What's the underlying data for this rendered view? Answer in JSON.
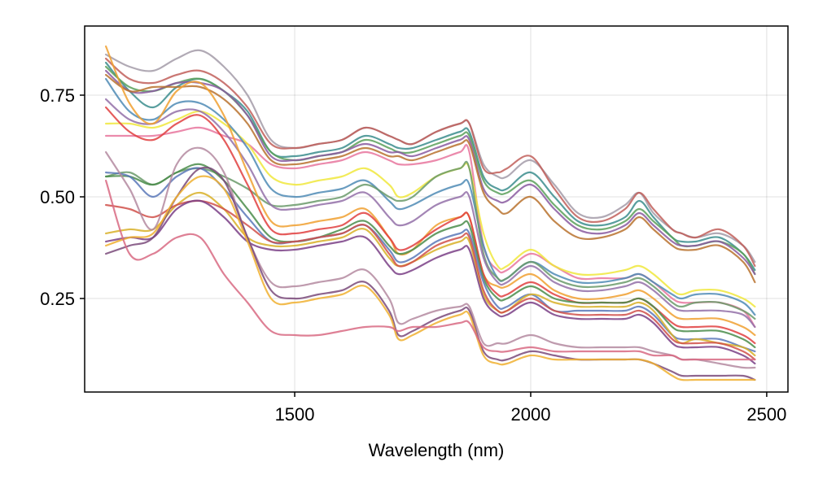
{
  "chart_data": {
    "type": "line",
    "title": "",
    "xlabel": "Wavelength (nm)",
    "ylabel": "",
    "xlim": [
      1055,
      2545
    ],
    "ylim": [
      0.02,
      0.92
    ],
    "xticks": [
      1500,
      2000,
      2500
    ],
    "xtick_labels": [
      "1500",
      "2000",
      "2500"
    ],
    "yticks": [
      0.25,
      0.5,
      0.75
    ],
    "ytick_labels": [
      "0.25",
      "0.50",
      "0.75"
    ],
    "grid": true,
    "legend": "none",
    "x": [
      1100,
      1150,
      1200,
      1250,
      1300,
      1350,
      1400,
      1450,
      1500,
      1550,
      1600,
      1650,
      1700,
      1720,
      1750,
      1800,
      1850,
      1870,
      1900,
      1930,
      1950,
      2000,
      2050,
      2100,
      2150,
      2200,
      2230,
      2260,
      2300,
      2320,
      2350,
      2400,
      2450,
      2475
    ],
    "series": [
      {
        "color": "#a39ba8",
        "values": [
          0.85,
          0.82,
          0.81,
          0.84,
          0.86,
          0.82,
          0.75,
          0.64,
          0.62,
          0.63,
          0.64,
          0.67,
          0.65,
          0.64,
          0.63,
          0.66,
          0.68,
          0.68,
          0.58,
          0.55,
          0.55,
          0.59,
          0.53,
          0.46,
          0.45,
          0.48,
          0.51,
          0.46,
          0.42,
          0.41,
          0.4,
          0.41,
          0.38,
          0.34
        ]
      },
      {
        "color": "#c15f5a",
        "values": [
          0.84,
          0.79,
          0.78,
          0.8,
          0.81,
          0.78,
          0.72,
          0.63,
          0.62,
          0.63,
          0.64,
          0.67,
          0.65,
          0.64,
          0.63,
          0.66,
          0.68,
          0.68,
          0.57,
          0.56,
          0.57,
          0.6,
          0.52,
          0.45,
          0.44,
          0.47,
          0.51,
          0.47,
          0.42,
          0.41,
          0.4,
          0.42,
          0.38,
          0.33
        ]
      },
      {
        "color": "#3b8d8d",
        "values": [
          0.83,
          0.76,
          0.72,
          0.77,
          0.79,
          0.76,
          0.71,
          0.61,
          0.6,
          0.61,
          0.62,
          0.65,
          0.63,
          0.62,
          0.62,
          0.64,
          0.66,
          0.66,
          0.55,
          0.52,
          0.52,
          0.56,
          0.5,
          0.44,
          0.43,
          0.45,
          0.49,
          0.45,
          0.4,
          0.39,
          0.39,
          0.4,
          0.36,
          0.32
        ]
      },
      {
        "color": "#5aa05a",
        "values": [
          0.82,
          0.77,
          0.76,
          0.78,
          0.79,
          0.76,
          0.7,
          0.61,
          0.59,
          0.6,
          0.61,
          0.64,
          0.62,
          0.61,
          0.61,
          0.63,
          0.65,
          0.65,
          0.54,
          0.51,
          0.51,
          0.54,
          0.48,
          0.43,
          0.42,
          0.44,
          0.47,
          0.44,
          0.4,
          0.38,
          0.38,
          0.39,
          0.36,
          0.31
        ]
      },
      {
        "color": "#8a5aa0",
        "values": [
          0.81,
          0.76,
          0.76,
          0.78,
          0.78,
          0.76,
          0.7,
          0.6,
          0.59,
          0.6,
          0.61,
          0.63,
          0.61,
          0.61,
          0.6,
          0.62,
          0.64,
          0.64,
          0.52,
          0.49,
          0.49,
          0.53,
          0.47,
          0.42,
          0.41,
          0.43,
          0.46,
          0.43,
          0.39,
          0.38,
          0.38,
          0.39,
          0.35,
          0.31
        ]
      },
      {
        "color": "#b8722e",
        "values": [
          0.8,
          0.76,
          0.77,
          0.77,
          0.77,
          0.74,
          0.68,
          0.59,
          0.58,
          0.59,
          0.6,
          0.62,
          0.6,
          0.6,
          0.59,
          0.61,
          0.63,
          0.63,
          0.51,
          0.47,
          0.46,
          0.5,
          0.44,
          0.4,
          0.4,
          0.42,
          0.45,
          0.42,
          0.38,
          0.37,
          0.37,
          0.38,
          0.34,
          0.29
        ]
      },
      {
        "color": "#e8759e",
        "values": [
          0.65,
          0.65,
          0.65,
          0.66,
          0.67,
          0.65,
          0.63,
          0.58,
          0.57,
          0.58,
          0.59,
          0.61,
          0.59,
          0.58,
          0.58,
          0.59,
          0.61,
          0.61,
          0.38,
          0.32,
          0.32,
          0.36,
          0.33,
          0.3,
          0.3,
          0.3,
          0.31,
          0.29,
          0.25,
          0.24,
          0.24,
          0.24,
          0.22,
          0.18
        ]
      },
      {
        "color": "#f0e83c",
        "values": [
          0.68,
          0.68,
          0.67,
          0.69,
          0.71,
          0.68,
          0.63,
          0.55,
          0.53,
          0.54,
          0.55,
          0.57,
          0.53,
          0.5,
          0.51,
          0.55,
          0.57,
          0.57,
          0.41,
          0.33,
          0.33,
          0.37,
          0.33,
          0.31,
          0.31,
          0.32,
          0.33,
          0.31,
          0.27,
          0.26,
          0.27,
          0.27,
          0.25,
          0.23
        ]
      },
      {
        "color": "#4f8bb5",
        "values": [
          0.79,
          0.71,
          0.69,
          0.73,
          0.73,
          0.69,
          0.62,
          0.52,
          0.5,
          0.51,
          0.52,
          0.54,
          0.49,
          0.47,
          0.48,
          0.51,
          0.53,
          0.53,
          0.38,
          0.3,
          0.3,
          0.34,
          0.31,
          0.29,
          0.29,
          0.3,
          0.31,
          0.29,
          0.26,
          0.25,
          0.26,
          0.26,
          0.24,
          0.21
        ]
      },
      {
        "color": "#6a9a6a",
        "values": [
          0.55,
          0.56,
          0.53,
          0.56,
          0.57,
          0.55,
          0.52,
          0.48,
          0.48,
          0.49,
          0.5,
          0.53,
          0.5,
          0.49,
          0.5,
          0.55,
          0.57,
          0.57,
          0.36,
          0.3,
          0.3,
          0.34,
          0.3,
          0.28,
          0.28,
          0.29,
          0.3,
          0.28,
          0.24,
          0.23,
          0.24,
          0.24,
          0.22,
          0.2
        ]
      },
      {
        "color": "#9370a8",
        "values": [
          0.74,
          0.69,
          0.68,
          0.71,
          0.71,
          0.66,
          0.58,
          0.48,
          0.47,
          0.48,
          0.49,
          0.51,
          0.45,
          0.43,
          0.44,
          0.48,
          0.5,
          0.5,
          0.35,
          0.29,
          0.29,
          0.33,
          0.29,
          0.27,
          0.27,
          0.28,
          0.29,
          0.27,
          0.23,
          0.22,
          0.22,
          0.22,
          0.21,
          0.18
        ]
      },
      {
        "color": "#f0a030",
        "values": [
          0.87,
          0.73,
          0.68,
          0.76,
          0.78,
          0.7,
          0.56,
          0.44,
          0.43,
          0.44,
          0.45,
          0.47,
          0.4,
          0.36,
          0.37,
          0.43,
          0.45,
          0.45,
          0.31,
          0.28,
          0.28,
          0.31,
          0.27,
          0.25,
          0.25,
          0.26,
          0.27,
          0.25,
          0.21,
          0.2,
          0.2,
          0.2,
          0.18,
          0.16
        ]
      },
      {
        "color": "#e04040",
        "values": [
          0.72,
          0.66,
          0.64,
          0.68,
          0.7,
          0.64,
          0.53,
          0.42,
          0.41,
          0.42,
          0.43,
          0.46,
          0.4,
          0.37,
          0.38,
          0.42,
          0.45,
          0.45,
          0.31,
          0.26,
          0.26,
          0.29,
          0.26,
          0.24,
          0.24,
          0.24,
          0.25,
          0.23,
          0.19,
          0.18,
          0.18,
          0.18,
          0.16,
          0.14
        ]
      },
      {
        "color": "#4a8c4a",
        "values": [
          0.55,
          0.55,
          0.53,
          0.56,
          0.58,
          0.54,
          0.47,
          0.4,
          0.39,
          0.4,
          0.42,
          0.44,
          0.38,
          0.36,
          0.37,
          0.41,
          0.43,
          0.43,
          0.3,
          0.25,
          0.25,
          0.28,
          0.25,
          0.24,
          0.24,
          0.24,
          0.25,
          0.23,
          0.18,
          0.17,
          0.17,
          0.17,
          0.15,
          0.13
        ]
      },
      {
        "color": "#5a78b8",
        "values": [
          0.56,
          0.55,
          0.5,
          0.55,
          0.57,
          0.52,
          0.45,
          0.39,
          0.39,
          0.4,
          0.41,
          0.43,
          0.37,
          0.34,
          0.35,
          0.39,
          0.41,
          0.41,
          0.29,
          0.23,
          0.23,
          0.26,
          0.22,
          0.22,
          0.22,
          0.22,
          0.23,
          0.21,
          0.16,
          0.15,
          0.15,
          0.15,
          0.13,
          0.12
        ]
      },
      {
        "color": "#d8b028",
        "values": [
          0.41,
          0.42,
          0.42,
          0.48,
          0.51,
          0.47,
          0.4,
          0.38,
          0.38,
          0.39,
          0.4,
          0.42,
          0.35,
          0.33,
          0.34,
          0.37,
          0.39,
          0.39,
          0.26,
          0.22,
          0.22,
          0.26,
          0.24,
          0.23,
          0.23,
          0.23,
          0.24,
          0.22,
          0.16,
          0.14,
          0.15,
          0.14,
          0.13,
          0.11
        ]
      },
      {
        "color": "#d0504a",
        "values": [
          0.48,
          0.47,
          0.45,
          0.48,
          0.49,
          0.47,
          0.43,
          0.39,
          0.39,
          0.4,
          0.41,
          0.43,
          0.36,
          0.33,
          0.34,
          0.38,
          0.4,
          0.4,
          0.27,
          0.22,
          0.22,
          0.25,
          0.22,
          0.21,
          0.21,
          0.21,
          0.22,
          0.2,
          0.15,
          0.14,
          0.14,
          0.14,
          0.12,
          0.1
        ]
      },
      {
        "color": "#7a3f86",
        "values": [
          0.39,
          0.4,
          0.4,
          0.47,
          0.49,
          0.45,
          0.39,
          0.37,
          0.37,
          0.38,
          0.39,
          0.4,
          0.33,
          0.31,
          0.32,
          0.35,
          0.37,
          0.37,
          0.25,
          0.21,
          0.21,
          0.24,
          0.21,
          0.2,
          0.2,
          0.2,
          0.21,
          0.19,
          0.14,
          0.13,
          0.13,
          0.13,
          0.11,
          0.09
        ]
      },
      {
        "color": "#b48aa0",
        "values": [
          0.61,
          0.52,
          0.42,
          0.58,
          0.62,
          0.56,
          0.4,
          0.29,
          0.28,
          0.29,
          0.3,
          0.32,
          0.25,
          0.19,
          0.2,
          0.22,
          0.23,
          0.23,
          0.14,
          0.14,
          0.14,
          0.16,
          0.14,
          0.13,
          0.13,
          0.13,
          0.13,
          0.12,
          0.11,
          0.1,
          0.1,
          0.09,
          0.08,
          0.08
        ]
      },
      {
        "color": "#7a4a7a",
        "values": [
          0.36,
          0.38,
          0.4,
          0.5,
          0.57,
          0.54,
          0.4,
          0.27,
          0.25,
          0.26,
          0.27,
          0.29,
          0.22,
          0.16,
          0.17,
          0.2,
          0.22,
          0.22,
          0.12,
          0.1,
          0.1,
          0.12,
          0.11,
          0.1,
          0.1,
          0.1,
          0.1,
          0.09,
          0.07,
          0.06,
          0.06,
          0.06,
          0.06,
          0.05
        ]
      },
      {
        "color": "#f0b030",
        "values": [
          0.38,
          0.4,
          0.41,
          0.5,
          0.55,
          0.52,
          0.39,
          0.25,
          0.24,
          0.25,
          0.26,
          0.28,
          0.21,
          0.15,
          0.16,
          0.19,
          0.21,
          0.21,
          0.11,
          0.09,
          0.09,
          0.11,
          0.1,
          0.1,
          0.1,
          0.1,
          0.1,
          0.09,
          0.06,
          0.05,
          0.05,
          0.05,
          0.05,
          0.05
        ]
      },
      {
        "color": "#d86a82",
        "values": [
          0.54,
          0.36,
          0.36,
          0.4,
          0.4,
          0.31,
          0.24,
          0.17,
          0.16,
          0.16,
          0.17,
          0.18,
          0.18,
          0.17,
          0.18,
          0.18,
          0.19,
          0.19,
          0.13,
          0.12,
          0.12,
          0.13,
          0.12,
          0.12,
          0.12,
          0.12,
          0.12,
          0.11,
          0.11,
          0.1,
          0.1,
          0.1,
          0.1,
          0.1
        ]
      }
    ]
  }
}
